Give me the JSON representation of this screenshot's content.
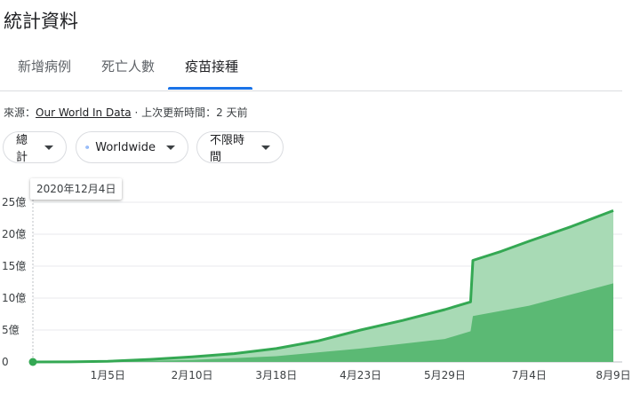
{
  "header": {
    "title": "統計資料"
  },
  "tabs": [
    {
      "label": "新增病例"
    },
    {
      "label": "死亡人數"
    },
    {
      "label": "疫苗接種",
      "active": true
    }
  ],
  "source": {
    "prefix": "來源：",
    "link": "Our World In Data",
    "separator": "·",
    "updated": "上次更新時間：2 天前"
  },
  "filters": {
    "metric": "總計",
    "region": "Worldwide",
    "time_range": "不限時間"
  },
  "tooltip": {
    "date": "2020年12月4日"
  },
  "colors": {
    "line": "#34a853",
    "area_total": "#a8dab5",
    "area_full": "#5bb974",
    "accent": "#1a73e8",
    "grid": "#e8eaed"
  },
  "chart_data": {
    "type": "area",
    "title": "",
    "xlabel": "",
    "ylabel": "",
    "y_unit": "億",
    "ylim": [
      0,
      25
    ],
    "y_ticks": [
      {
        "value": 0,
        "label": "0"
      },
      {
        "value": 5,
        "label": "5億"
      },
      {
        "value": 10,
        "label": "10億"
      },
      {
        "value": 15,
        "label": "15億"
      },
      {
        "value": 20,
        "label": "20億"
      },
      {
        "value": 25,
        "label": "25億"
      }
    ],
    "x_range": [
      "2020-12-04",
      "2021-08-09"
    ],
    "x_ticks": [
      {
        "date": "2021-01-05",
        "label": "1月5日"
      },
      {
        "date": "2021-02-10",
        "label": "2月10日"
      },
      {
        "date": "2021-03-18",
        "label": "3月18日"
      },
      {
        "date": "2021-04-23",
        "label": "4月23日"
      },
      {
        "date": "2021-05-29",
        "label": "5月29日"
      },
      {
        "date": "2021-07-04",
        "label": "7月4日"
      },
      {
        "date": "2021-08-09",
        "label": "8月9日"
      }
    ],
    "grid": true,
    "legend": "none",
    "series": [
      {
        "values": [
          {
            "date": "2020-12-04",
            "y": 0
          },
          {
            "date": "2020-12-20",
            "y": 0.02
          },
          {
            "date": "2021-01-05",
            "y": 0.1
          },
          {
            "date": "2021-01-23",
            "y": 0.4
          },
          {
            "date": "2021-02-10",
            "y": 0.8
          },
          {
            "date": "2021-02-28",
            "y": 1.3
          },
          {
            "date": "2021-03-18",
            "y": 2.1
          },
          {
            "date": "2021-04-05",
            "y": 3.3
          },
          {
            "date": "2021-04-23",
            "y": 5.0
          },
          {
            "date": "2021-05-11",
            "y": 6.5
          },
          {
            "date": "2021-05-29",
            "y": 8.2
          },
          {
            "date": "2021-06-09",
            "y": 9.4
          },
          {
            "date": "2021-06-10",
            "y": 15.9
          },
          {
            "date": "2021-06-22",
            "y": 17.3
          },
          {
            "date": "2021-07-04",
            "y": 18.9
          },
          {
            "date": "2021-07-22",
            "y": 21.2
          },
          {
            "date": "2021-08-09",
            "y": 23.7
          }
        ]
      },
      {
        "values": [
          {
            "date": "2020-12-04",
            "y": 0
          },
          {
            "date": "2021-01-05",
            "y": 0.05
          },
          {
            "date": "2021-02-10",
            "y": 0.3
          },
          {
            "date": "2021-03-18",
            "y": 0.9
          },
          {
            "date": "2021-04-23",
            "y": 2.1
          },
          {
            "date": "2021-05-29",
            "y": 3.6
          },
          {
            "date": "2021-06-09",
            "y": 4.8
          },
          {
            "date": "2021-06-10",
            "y": 7.2
          },
          {
            "date": "2021-07-04",
            "y": 8.8
          },
          {
            "date": "2021-08-09",
            "y": 12.3
          }
        ]
      }
    ]
  }
}
